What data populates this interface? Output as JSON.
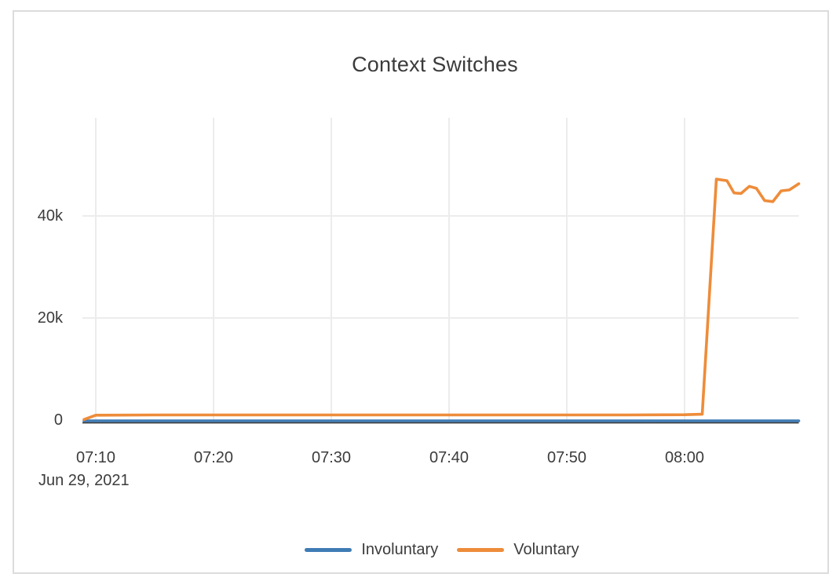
{
  "card": {
    "background": "#ffffff",
    "border_color": "#dcdcdc"
  },
  "chart_data": {
    "type": "line",
    "title": "Context Switches",
    "x_axis": {
      "date_label": "Jun 29, 2021",
      "tick_labels": [
        "07:10",
        "07:20",
        "07:30",
        "07:40",
        "07:50",
        "08:00"
      ],
      "tick_minutes": [
        10,
        20,
        30,
        40,
        50,
        60
      ],
      "range_minutes_from_0700": [
        9.0,
        69.7
      ],
      "grid": true
    },
    "y_axis": {
      "tick_labels": [
        "0",
        "20k",
        "40k"
      ],
      "tick_values": [
        0,
        20000,
        40000
      ],
      "range": [
        0,
        59200
      ],
      "grid": true
    },
    "legend_position": "bottom-center",
    "grid_color": "#ececec",
    "zero_line_color": "#3a3a3a",
    "text_color": "#3c3c3c",
    "title_color": "#3b3b3b",
    "series": [
      {
        "name": "Involuntary",
        "color": "#3f7cb5",
        "points": [
          [
            9.0,
            0
          ],
          [
            20,
            0
          ],
          [
            30,
            0
          ],
          [
            40,
            0
          ],
          [
            50,
            0
          ],
          [
            60,
            0
          ],
          [
            69.7,
            0
          ]
        ]
      },
      {
        "name": "Voluntary",
        "color": "#ee8c3a",
        "points": [
          [
            9.0,
            100
          ],
          [
            10,
            950
          ],
          [
            15,
            1000
          ],
          [
            20,
            1000
          ],
          [
            25,
            1000
          ],
          [
            30,
            1000
          ],
          [
            35,
            1000
          ],
          [
            40,
            1000
          ],
          [
            45,
            1000
          ],
          [
            50,
            1000
          ],
          [
            55,
            1000
          ],
          [
            60,
            1050
          ],
          [
            61.5,
            1150
          ],
          [
            62.7,
            47200
          ],
          [
            63.6,
            46900
          ],
          [
            64.2,
            44500
          ],
          [
            64.8,
            44400
          ],
          [
            65.5,
            45800
          ],
          [
            66.1,
            45400
          ],
          [
            66.8,
            43000
          ],
          [
            67.5,
            42800
          ],
          [
            68.2,
            44900
          ],
          [
            68.9,
            45100
          ],
          [
            69.7,
            46300
          ]
        ]
      }
    ]
  }
}
